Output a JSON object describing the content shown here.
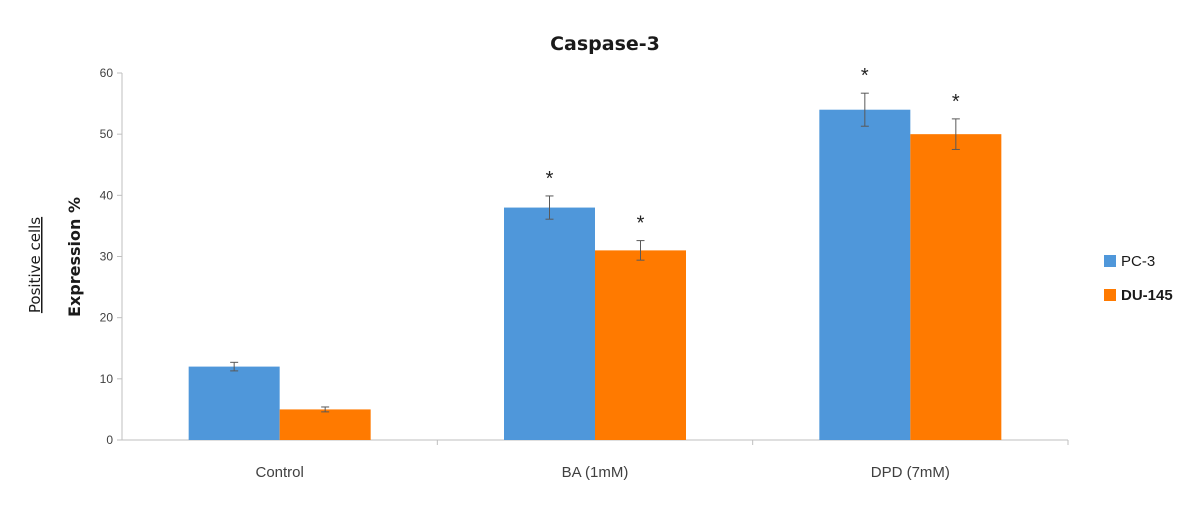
{
  "chart_data": {
    "type": "bar",
    "title": "Caspase-3",
    "xlabel": "",
    "ylabel": "Expression %",
    "ylabel_secondary": "Positive cells",
    "ylim": [
      0,
      60
    ],
    "yticks": [
      0,
      10,
      20,
      30,
      40,
      50,
      60
    ],
    "categories": [
      "Control",
      "BA (1mM)",
      "DPD (7mM)"
    ],
    "series": [
      {
        "name": "PC-3",
        "color": "#4F97DA",
        "values": [
          12,
          38,
          54
        ],
        "errors": [
          0.7,
          1.9,
          2.7
        ],
        "significance": [
          "",
          "*",
          "*"
        ]
      },
      {
        "name": "DU-145",
        "color": "#FF7A00",
        "values": [
          5,
          31,
          50
        ],
        "errors": [
          0.4,
          1.6,
          2.5
        ],
        "significance": [
          "",
          "*",
          "*"
        ]
      }
    ],
    "grid": false,
    "legend_position": "right"
  }
}
